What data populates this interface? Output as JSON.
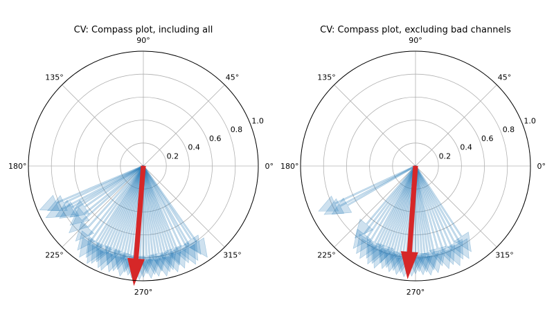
{
  "figure": {
    "background": "#ffffff"
  },
  "chart_data": [
    {
      "type": "polar-compass",
      "title": "CV: Compass plot, including all",
      "angle_ticks": [
        "0°",
        "45°",
        "90°",
        "135°",
        "180°",
        "225°",
        "270°",
        "315°"
      ],
      "radial_ticks": [
        "0.2",
        "0.4",
        "0.6",
        "0.8",
        "1.0"
      ],
      "rlim": [
        0,
        1.0
      ],
      "grid": true,
      "arrow_color": "#1f77b4",
      "arrow_alpha": 0.22,
      "mean_color": "#d62728",
      "arrows": [
        {
          "theta": 203,
          "r": 0.98
        },
        {
          "theta": 205,
          "r": 0.92
        },
        {
          "theta": 208,
          "r": 0.96
        },
        {
          "theta": 210,
          "r": 0.88
        },
        {
          "theta": 212,
          "r": 0.86
        },
        {
          "theta": 215,
          "r": 0.78
        },
        {
          "theta": 219,
          "r": 0.82
        },
        {
          "theta": 222,
          "r": 0.87
        },
        {
          "theta": 228,
          "r": 0.88
        },
        {
          "theta": 232,
          "r": 0.93
        },
        {
          "theta": 235,
          "r": 0.97
        },
        {
          "theta": 238,
          "r": 0.94
        },
        {
          "theta": 240,
          "r": 0.98
        },
        {
          "theta": 242,
          "r": 0.96
        },
        {
          "theta": 244,
          "r": 0.93
        },
        {
          "theta": 246,
          "r": 0.97
        },
        {
          "theta": 248,
          "r": 0.98
        },
        {
          "theta": 250,
          "r": 0.92
        },
        {
          "theta": 252,
          "r": 0.97
        },
        {
          "theta": 254,
          "r": 0.95
        },
        {
          "theta": 256,
          "r": 0.93
        },
        {
          "theta": 258,
          "r": 0.98
        },
        {
          "theta": 260,
          "r": 0.94
        },
        {
          "theta": 262,
          "r": 0.96
        },
        {
          "theta": 264,
          "r": 0.98
        },
        {
          "theta": 266,
          "r": 0.95
        },
        {
          "theta": 268,
          "r": 0.99
        },
        {
          "theta": 270,
          "r": 0.97
        },
        {
          "theta": 272,
          "r": 0.94
        },
        {
          "theta": 274,
          "r": 0.98
        },
        {
          "theta": 276,
          "r": 0.95
        },
        {
          "theta": 278,
          "r": 0.97
        },
        {
          "theta": 280,
          "r": 0.93
        },
        {
          "theta": 282,
          "r": 0.98
        },
        {
          "theta": 284,
          "r": 0.95
        },
        {
          "theta": 286,
          "r": 0.94
        },
        {
          "theta": 288,
          "r": 0.97
        },
        {
          "theta": 290,
          "r": 0.92
        },
        {
          "theta": 292,
          "r": 0.96
        },
        {
          "theta": 295,
          "r": 0.93
        },
        {
          "theta": 298,
          "r": 0.97
        },
        {
          "theta": 300,
          "r": 0.95
        },
        {
          "theta": 303,
          "r": 0.92
        },
        {
          "theta": 305,
          "r": 0.97
        }
      ],
      "mean": {
        "theta": 265.5,
        "r": 1.04
      }
    },
    {
      "type": "polar-compass",
      "title": "CV: Compass plot, excluding bad channels",
      "angle_ticks": [
        "0°",
        "45°",
        "90°",
        "135°",
        "180°",
        "225°",
        "270°",
        "315°"
      ],
      "radial_ticks": [
        "0.2",
        "0.4",
        "0.6",
        "0.8",
        "1.0"
      ],
      "rlim": [
        0,
        1.0
      ],
      "grid": true,
      "arrow_color": "#1f77b4",
      "arrow_alpha": 0.22,
      "mean_color": "#d62728",
      "arrows": [
        {
          "theta": 205,
          "r": 0.93
        },
        {
          "theta": 208,
          "r": 0.9
        },
        {
          "theta": 210,
          "r": 0.84
        },
        {
          "theta": 230,
          "r": 0.82
        },
        {
          "theta": 233,
          "r": 0.9
        },
        {
          "theta": 236,
          "r": 0.92
        },
        {
          "theta": 239,
          "r": 0.94
        },
        {
          "theta": 242,
          "r": 0.91
        },
        {
          "theta": 244,
          "r": 0.95
        },
        {
          "theta": 246,
          "r": 0.93
        },
        {
          "theta": 248,
          "r": 0.96
        },
        {
          "theta": 250,
          "r": 0.9
        },
        {
          "theta": 252,
          "r": 0.94
        },
        {
          "theta": 254,
          "r": 0.92
        },
        {
          "theta": 256,
          "r": 0.95
        },
        {
          "theta": 258,
          "r": 0.93
        },
        {
          "theta": 260,
          "r": 0.96
        },
        {
          "theta": 262,
          "r": 0.94
        },
        {
          "theta": 264,
          "r": 0.97
        },
        {
          "theta": 266,
          "r": 0.93
        },
        {
          "theta": 268,
          "r": 0.96
        },
        {
          "theta": 270,
          "r": 0.94
        },
        {
          "theta": 272,
          "r": 0.92
        },
        {
          "theta": 274,
          "r": 0.95
        },
        {
          "theta": 276,
          "r": 0.93
        },
        {
          "theta": 278,
          "r": 0.96
        },
        {
          "theta": 280,
          "r": 0.92
        },
        {
          "theta": 282,
          "r": 0.95
        },
        {
          "theta": 285,
          "r": 0.9
        },
        {
          "theta": 288,
          "r": 0.94
        },
        {
          "theta": 291,
          "r": 0.92
        },
        {
          "theta": 294,
          "r": 0.95
        },
        {
          "theta": 297,
          "r": 0.91
        },
        {
          "theta": 300,
          "r": 0.93
        },
        {
          "theta": 303,
          "r": 0.89
        }
      ],
      "mean": {
        "theta": 266,
        "r": 0.98
      }
    }
  ]
}
